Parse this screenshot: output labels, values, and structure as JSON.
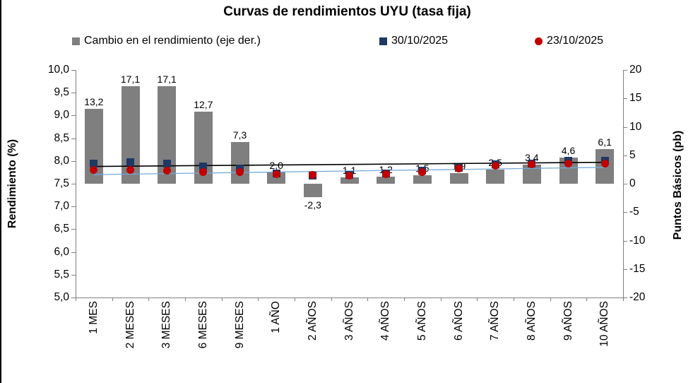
{
  "title": "Curvas de rendimientos UYU (tasa fija)",
  "legend": [
    {
      "label": "Cambio en el rendimiento (eje der.)",
      "marker": "square",
      "color": "#7F7F7F"
    },
    {
      "label": "30/10/2025",
      "marker": "square",
      "color": "#1F3864"
    },
    {
      "label": "23/10/2025",
      "marker": "circle",
      "color": "#C00000"
    }
  ],
  "chart_data": {
    "type": "combo-bar-scatter",
    "title": "Curvas de rendimientos UYU (tasa fija)",
    "categories": [
      "1 MES",
      "2 MESES",
      "3 MESES",
      "6 MESES",
      "9 MESES",
      "1 AÑO",
      "2 AÑOS",
      "3 AÑOS",
      "4 AÑOS",
      "5 AÑOS",
      "6 AÑOS",
      "7 AÑOS",
      "8 AÑOS",
      "9 AÑOS",
      "10 AÑOS"
    ],
    "series": [
      {
        "name": "Cambio en el rendimiento (eje der.)",
        "type": "bar",
        "axis": "right",
        "color": "#7F7F7F",
        "values": [
          13.2,
          17.1,
          17.1,
          12.7,
          7.3,
          2.0,
          -2.3,
          1.1,
          1.2,
          1.5,
          1.9,
          2.5,
          3.4,
          4.6,
          6.1
        ],
        "labels": [
          "13,2",
          "17,1",
          "17,1",
          "12,7",
          "7,3",
          "2,0",
          "-2,3",
          "1,1",
          "1,2",
          "1,5",
          "1,9",
          "2,5",
          "3,4",
          "4,6",
          "6,1"
        ]
      },
      {
        "name": "30/10/2025",
        "type": "scatter",
        "axis": "left",
        "marker": "square",
        "color": "#1F3864",
        "values": [
          7.94,
          7.97,
          7.95,
          7.88,
          7.83,
          7.73,
          7.68,
          7.69,
          7.72,
          7.78,
          7.85,
          7.92,
          7.95,
          8.0,
          8.0
        ]
      },
      {
        "name": "23/10/2025",
        "type": "scatter",
        "axis": "left",
        "marker": "circle",
        "color": "#C00000",
        "values": [
          7.81,
          7.8,
          7.78,
          7.75,
          7.76,
          7.71,
          7.7,
          7.68,
          7.71,
          7.76,
          7.83,
          7.89,
          7.92,
          7.95,
          7.94
        ]
      }
    ],
    "trend_lines": [
      {
        "name": "30/10/2025-line",
        "color": "#000000",
        "width": 1.6,
        "y_start": 7.88,
        "y_end": 7.97
      },
      {
        "name": "23/10/2025-line",
        "color": "#74A9D8",
        "width": 1.3,
        "y_start": 7.7,
        "y_end": 7.86
      }
    ],
    "left_axis": {
      "title": "Rendimiento (%)",
      "min": 5.0,
      "max": 10.0,
      "step": 0.5,
      "ticks": [
        {
          "label": "10,0",
          "value": 10.0
        },
        {
          "label": "9,5",
          "value": 9.5
        },
        {
          "label": "9,0",
          "value": 9.0
        },
        {
          "label": "8,5",
          "value": 8.5
        },
        {
          "label": "8,0",
          "value": 8.0
        },
        {
          "label": "7,5",
          "value": 7.5
        },
        {
          "label": "7,0",
          "value": 7.0
        },
        {
          "label": "6,5",
          "value": 6.5
        },
        {
          "label": "6,0",
          "value": 6.0
        },
        {
          "label": "5,5",
          "value": 5.5
        },
        {
          "label": "5,0",
          "value": 5.0
        }
      ]
    },
    "right_axis": {
      "title": "Puntos Básicos (pb)",
      "min": -20,
      "max": 20,
      "step": 5,
      "ticks": [
        {
          "label": "20",
          "value": 20
        },
        {
          "label": "15",
          "value": 15
        },
        {
          "label": "10",
          "value": 10
        },
        {
          "label": "5",
          "value": 5
        },
        {
          "label": "0",
          "value": 0
        },
        {
          "label": "-5",
          "value": -5
        },
        {
          "label": "-10",
          "value": -10
        },
        {
          "label": "-15",
          "value": -15
        },
        {
          "label": "-20",
          "value": -20
        }
      ]
    },
    "grid": false,
    "legend_position": "top"
  }
}
